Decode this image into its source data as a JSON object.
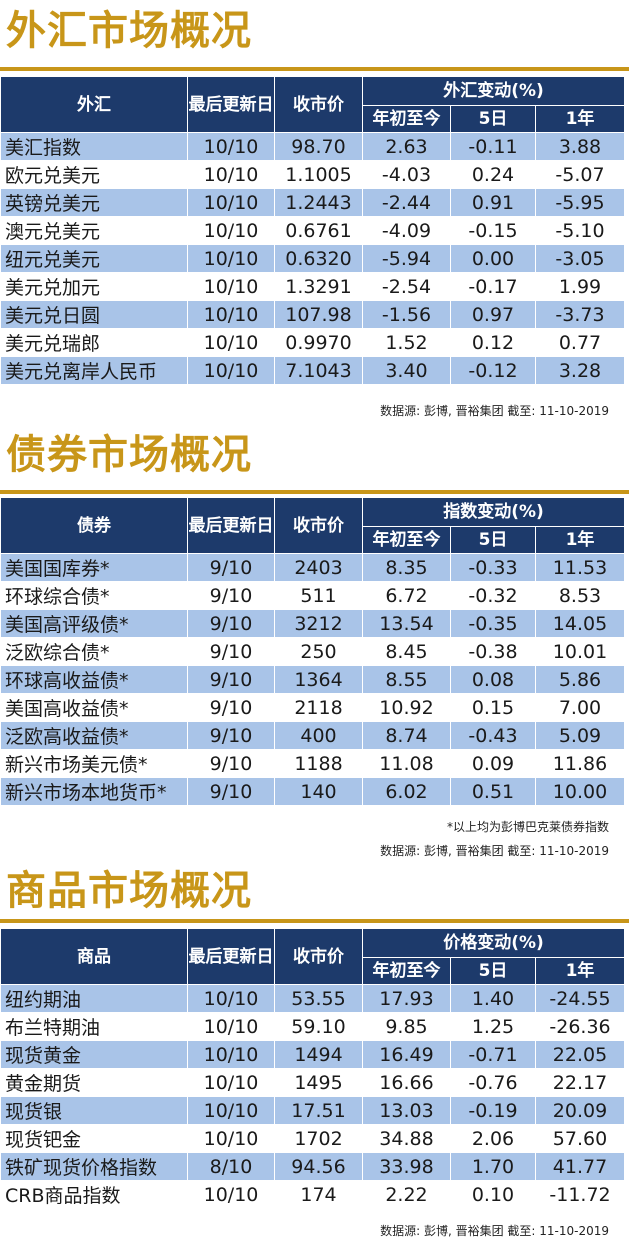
{
  "fx": {
    "title": "外汇市场概况",
    "headers": {
      "name": "外汇",
      "date": "最后更新日",
      "close": "收市价",
      "change_group": "外汇变动(%)",
      "ytd": "年初至今",
      "d5": "5日",
      "y1": "1年"
    },
    "rows": [
      {
        "name": "美汇指数",
        "date": "10/10",
        "close": "98.70",
        "ytd": "2.63",
        "d5": "-0.11",
        "y1": "3.88"
      },
      {
        "name": "欧元兑美元",
        "date": "10/10",
        "close": "1.1005",
        "ytd": "-4.03",
        "d5": "0.24",
        "y1": "-5.07"
      },
      {
        "name": "英镑兑美元",
        "date": "10/10",
        "close": "1.2443",
        "ytd": "-2.44",
        "d5": "0.91",
        "y1": "-5.95"
      },
      {
        "name": "澳元兑美元",
        "date": "10/10",
        "close": "0.6761",
        "ytd": "-4.09",
        "d5": "-0.15",
        "y1": "-5.10"
      },
      {
        "name": "纽元兑美元",
        "date": "10/10",
        "close": "0.6320",
        "ytd": "-5.94",
        "d5": "0.00",
        "y1": "-3.05"
      },
      {
        "name": "美元兑加元",
        "date": "10/10",
        "close": "1.3291",
        "ytd": "-2.54",
        "d5": "-0.17",
        "y1": "1.99"
      },
      {
        "name": "美元兑日圆",
        "date": "10/10",
        "close": "107.98",
        "ytd": "-1.56",
        "d5": "0.97",
        "y1": "-3.73"
      },
      {
        "name": "美元兑瑞郎",
        "date": "10/10",
        "close": "0.9970",
        "ytd": "1.52",
        "d5": "0.12",
        "y1": "0.77"
      },
      {
        "name": "美元兑离岸人民币",
        "date": "10/10",
        "close": "7.1043",
        "ytd": "3.40",
        "d5": "-0.12",
        "y1": "3.28"
      }
    ],
    "source": "数据源: 彭博, 晋裕集团 截至: 11-10-2019"
  },
  "bond": {
    "title": "债券市场概况",
    "headers": {
      "name": "债券",
      "date": "最后更新日",
      "close": "收市价",
      "change_group": "指数变动(%)",
      "ytd": "年初至今",
      "d5": "5日",
      "y1": "1年"
    },
    "rows": [
      {
        "name": "美国国库券*",
        "date": "9/10",
        "close": "2403",
        "ytd": "8.35",
        "d5": "-0.33",
        "y1": "11.53"
      },
      {
        "name": "环球综合债*",
        "date": "9/10",
        "close": "511",
        "ytd": "6.72",
        "d5": "-0.32",
        "y1": "8.53"
      },
      {
        "name": "美国高评级债*",
        "date": "9/10",
        "close": "3212",
        "ytd": "13.54",
        "d5": "-0.35",
        "y1": "14.05"
      },
      {
        "name": "泛欧综合债*",
        "date": "9/10",
        "close": "250",
        "ytd": "8.45",
        "d5": "-0.38",
        "y1": "10.01"
      },
      {
        "name": "环球高收益债*",
        "date": "9/10",
        "close": "1364",
        "ytd": "8.55",
        "d5": "0.08",
        "y1": "5.86"
      },
      {
        "name": "美国高收益债*",
        "date": "9/10",
        "close": "2118",
        "ytd": "10.92",
        "d5": "0.15",
        "y1": "7.00"
      },
      {
        "name": "泛欧高收益债*",
        "date": "9/10",
        "close": "400",
        "ytd": "8.74",
        "d5": "-0.43",
        "y1": "5.09"
      },
      {
        "name": "新兴市场美元债*",
        "date": "9/10",
        "close": "1188",
        "ytd": "11.08",
        "d5": "0.09",
        "y1": "11.86"
      },
      {
        "name": "新兴市场本地货币*",
        "date": "9/10",
        "close": "140",
        "ytd": "6.02",
        "d5": "0.51",
        "y1": "10.00"
      }
    ],
    "note": "*以上均为彭博巴克莱债券指数",
    "source": "数据源: 彭博, 晋裕集团 截至: 11-10-2019"
  },
  "commodity": {
    "title": "商品市场概况",
    "headers": {
      "name": "商品",
      "date": "最后更新日",
      "close": "收市价",
      "change_group": "价格变动(%)",
      "ytd": "年初至今",
      "d5": "5日",
      "y1": "1年"
    },
    "rows": [
      {
        "name": "纽约期油",
        "date": "10/10",
        "close": "53.55",
        "ytd": "17.93",
        "d5": "1.40",
        "y1": "-24.55"
      },
      {
        "name": "布兰特期油",
        "date": "10/10",
        "close": "59.10",
        "ytd": "9.85",
        "d5": "1.25",
        "y1": "-26.36"
      },
      {
        "name": "现货黄金",
        "date": "10/10",
        "close": "1494",
        "ytd": "16.49",
        "d5": "-0.71",
        "y1": "22.05"
      },
      {
        "name": "黄金期货",
        "date": "10/10",
        "close": "1495",
        "ytd": "16.66",
        "d5": "-0.76",
        "y1": "22.17"
      },
      {
        "name": "现货银",
        "date": "10/10",
        "close": "17.51",
        "ytd": "13.03",
        "d5": "-0.19",
        "y1": "20.09"
      },
      {
        "name": "现货钯金",
        "date": "10/10",
        "close": "1702",
        "ytd": "34.88",
        "d5": "2.06",
        "y1": "57.60"
      },
      {
        "name": "铁矿现货价格指数",
        "date": "8/10",
        "close": "94.56",
        "ytd": "33.98",
        "d5": "1.70",
        "y1": "41.77"
      },
      {
        "name": "CRB商品指数",
        "date": "10/10",
        "close": "174",
        "ytd": "2.22",
        "d5": "0.10",
        "y1": "-11.72"
      }
    ],
    "source": "数据源: 彭博, 晋裕集团 截至: 11-10-2019"
  },
  "colors": {
    "title_gold": "#c89619",
    "header_navy": "#1d3a6b",
    "row_shade": "#a9c4e8"
  }
}
